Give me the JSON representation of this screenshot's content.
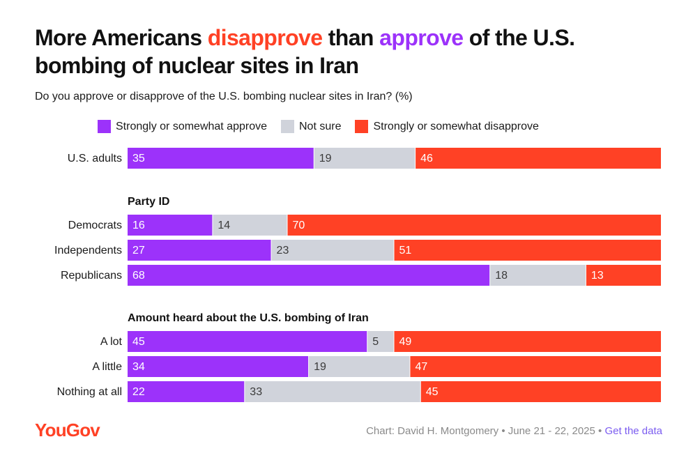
{
  "title": {
    "part1": "More Americans ",
    "highlight_disapprove": "disapprove",
    "part2": " than ",
    "highlight_approve": "approve",
    "part3": " of the U.S. bombing of nuclear sites in Iran"
  },
  "subtitle": "Do you approve or disapprove of the U.S. bombing nuclear sites in Iran? (%)",
  "legend": [
    {
      "label": "Strongly or somewhat approve",
      "color": "#9c32fa"
    },
    {
      "label": "Not sure",
      "color": "#d0d3db"
    },
    {
      "label": "Strongly or somewhat disapprove",
      "color": "#ff4125"
    }
  ],
  "chart_data": {
    "type": "bar",
    "orientation": "horizontal",
    "stacked": true,
    "xlim": [
      0,
      100
    ],
    "series": [
      {
        "name": "Strongly or somewhat approve",
        "color": "#9c32fa"
      },
      {
        "name": "Not sure",
        "color": "#d0d3db"
      },
      {
        "name": "Strongly or somewhat disapprove",
        "color": "#ff4125"
      }
    ],
    "groups": [
      {
        "heading": "",
        "rows": [
          {
            "label": "U.S. adults",
            "values": [
              35,
              19,
              46
            ]
          }
        ]
      },
      {
        "heading": "Party ID",
        "rows": [
          {
            "label": "Democrats",
            "values": [
              16,
              14,
              70
            ]
          },
          {
            "label": "Independents",
            "values": [
              27,
              23,
              51
            ]
          },
          {
            "label": "Republicans",
            "values": [
              68,
              18,
              13
            ]
          }
        ]
      },
      {
        "heading": "Amount heard about the U.S. bombing of Iran",
        "rows": [
          {
            "label": "A lot",
            "values": [
              45,
              5,
              49
            ]
          },
          {
            "label": "A little",
            "values": [
              34,
              19,
              47
            ]
          },
          {
            "label": "Nothing at all",
            "values": [
              22,
              33,
              45
            ]
          }
        ]
      }
    ]
  },
  "footer": {
    "logo": "YouGov",
    "credit": "Chart: David H. Montgomery • June 21 - 22, 2025 • ",
    "link": "Get the data"
  }
}
